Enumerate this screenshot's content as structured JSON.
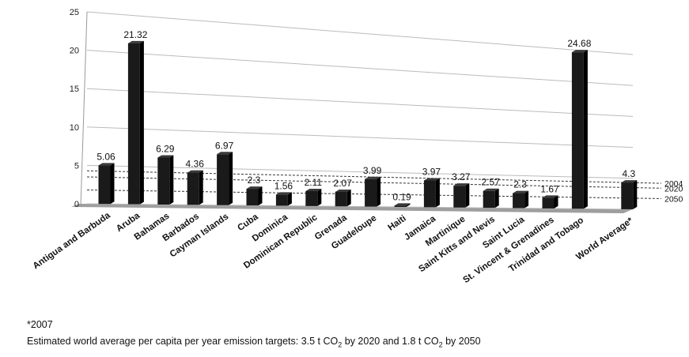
{
  "chart_data": {
    "type": "bar",
    "categories": [
      "Antigua and Barbuda",
      "Aruba",
      "Bahamas",
      "Barbados",
      "Cayman Islands",
      "Cuba",
      "Dominica",
      "Dominican Republic",
      "Grenada",
      "Guadeloupe",
      "Haiti",
      "Jamaica",
      "Martinique",
      "Saint Kitts and Nevis",
      "Saint Lucia",
      "St. Vincent & Grenadines",
      "Trinidad and Tobago",
      "World Average*"
    ],
    "values": [
      5.06,
      21.32,
      6.29,
      4.36,
      6.97,
      2.3,
      1.56,
      2.11,
      2.07,
      3.99,
      0.19,
      3.97,
      3.27,
      2.57,
      2.3,
      1.67,
      24.68,
      4.3
    ],
    "data_labels": [
      "5.06",
      "21.32",
      "6.29",
      "4.36",
      "6.97",
      "2.3",
      "1.56",
      "2.11",
      "2.07",
      "3.99",
      "0.19",
      "3.97",
      "3.27",
      "2.57",
      "2.3",
      "1.67",
      "24.68",
      "4.3"
    ],
    "y_ticks": [
      "0",
      "5",
      "10",
      "15",
      "20",
      "25"
    ],
    "ylim": [
      0,
      25
    ],
    "grid": true,
    "reference_lines": [
      {
        "label": "2004",
        "value": 4.3
      },
      {
        "label": "2020",
        "value": 3.5
      },
      {
        "label": "2050",
        "value": 1.8
      }
    ],
    "colors": {
      "bar": "#1a1a1a",
      "grid": "#bbbbbb",
      "floor": "#9e9e9e"
    }
  },
  "footnote_1": "*2007",
  "footnote_2_text": "Estimated world average per capita per year emission targets: 3.5 t CO",
  "footnote_2_sub1": "2",
  "footnote_2_mid": " by 2020 and 1.8 t CO",
  "footnote_2_sub2": "2",
  "footnote_2_end": " by 2050"
}
